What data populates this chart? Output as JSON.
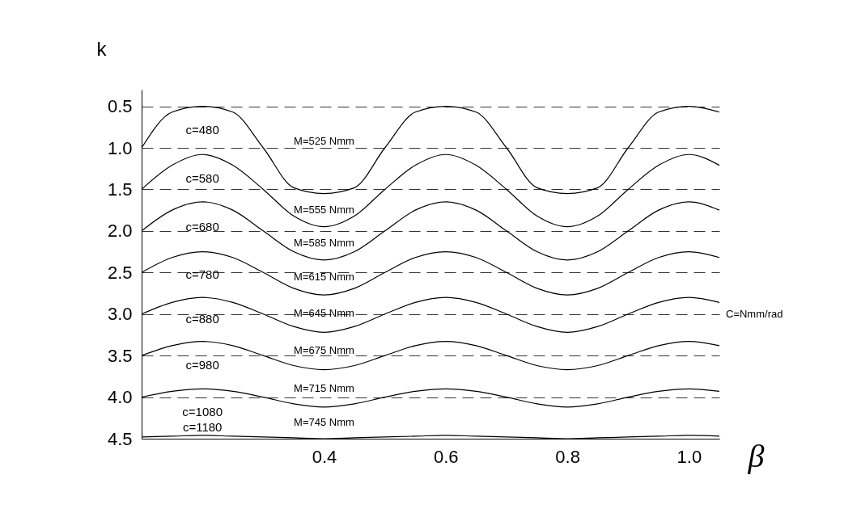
{
  "chart_data": {
    "type": "line",
    "xlabel": "β",
    "ylabel": "k",
    "x": [
      0.1,
      0.15,
      0.2,
      0.25,
      0.3,
      0.35,
      0.4,
      0.45,
      0.5,
      0.55,
      0.6,
      0.65,
      0.7,
      0.75,
      0.8,
      0.85,
      0.9,
      0.95,
      1.0,
      1.05
    ],
    "xlim": [
      0.1,
      1.05
    ],
    "xticks": [
      {
        "value": 0.4,
        "label": "0.4"
      },
      {
        "value": 0.6,
        "label": "0.6"
      },
      {
        "value": 0.8,
        "label": "0.8"
      },
      {
        "value": 1.0,
        "label": "1.0"
      }
    ],
    "ylim": [
      4.5,
      0.3
    ],
    "yticks": [
      0.5,
      {
        "value": 1.0,
        "label": "1.0"
      },
      1.5,
      {
        "value": 2.0,
        "label": "2.0"
      },
      2.5,
      {
        "value": 3.0,
        "label": "3.0"
      },
      3.5,
      {
        "value": 4.0,
        "label": "4.0"
      },
      4.5
    ],
    "grid": "y",
    "line_style": "solid",
    "legend": false,
    "series": [
      {
        "color": "#000000",
        "values": [
          1.0,
          0.57,
          0.5,
          0.57,
          1.0,
          1.48,
          1.55,
          1.48,
          1.0,
          0.57,
          0.5,
          0.57,
          1.0,
          1.48,
          1.55,
          1.48,
          1.0,
          0.57,
          0.5,
          0.57
        ]
      },
      {
        "color": "#000000",
        "values": [
          1.5,
          1.21,
          1.08,
          1.21,
          1.5,
          1.82,
          1.95,
          1.82,
          1.5,
          1.21,
          1.08,
          1.21,
          1.5,
          1.82,
          1.95,
          1.82,
          1.5,
          1.21,
          1.08,
          1.21
        ]
      },
      {
        "color": "#000000",
        "values": [
          2.0,
          1.75,
          1.65,
          1.75,
          2.0,
          2.25,
          2.35,
          2.25,
          2.0,
          1.75,
          1.65,
          1.75,
          2.0,
          2.25,
          2.35,
          2.25,
          2.0,
          1.75,
          1.65,
          1.75
        ]
      },
      {
        "color": "#000000",
        "values": [
          2.5,
          2.32,
          2.25,
          2.32,
          2.5,
          2.69,
          2.77,
          2.69,
          2.5,
          2.32,
          2.25,
          2.32,
          2.5,
          2.69,
          2.77,
          2.69,
          2.5,
          2.32,
          2.25,
          2.32
        ]
      },
      {
        "color": "#000000",
        "values": [
          3.0,
          2.86,
          2.8,
          2.86,
          3.0,
          3.15,
          3.22,
          3.15,
          3.0,
          2.86,
          2.8,
          2.86,
          3.0,
          3.15,
          3.22,
          3.15,
          3.0,
          2.86,
          2.8,
          2.86
        ]
      },
      {
        "color": "#000000",
        "values": [
          3.5,
          3.38,
          3.33,
          3.38,
          3.5,
          3.62,
          3.67,
          3.62,
          3.5,
          3.38,
          3.33,
          3.38,
          3.5,
          3.62,
          3.67,
          3.62,
          3.5,
          3.38,
          3.33,
          3.38
        ]
      },
      {
        "color": "#000000",
        "values": [
          4.0,
          3.93,
          3.9,
          3.93,
          4.0,
          4.08,
          4.12,
          4.08,
          4.0,
          3.93,
          3.9,
          3.93,
          4.0,
          4.08,
          4.12,
          4.08,
          4.0,
          3.93,
          3.9,
          3.93
        ]
      },
      {
        "color": "#000000",
        "values": [
          4.48,
          4.47,
          4.46,
          4.47,
          4.48,
          4.49,
          4.5,
          4.49,
          4.48,
          4.47,
          4.46,
          4.47,
          4.48,
          4.49,
          4.5,
          4.49,
          4.48,
          4.47,
          4.46,
          4.47
        ]
      }
    ],
    "annotations": [
      "c=480",
      "c=580",
      "c=680",
      "c=780",
      "c=880",
      "c=980",
      "c=1080",
      "c=1180",
      "M=525 Nmm",
      "M=555 Nmm",
      "M=585 Nmm",
      "M=615 Nmm",
      "M=645 Nmm",
      "M=675 Nmm",
      "M=715 Nmm",
      "M=745 Nmm",
      "C=Nmm/rad"
    ]
  }
}
